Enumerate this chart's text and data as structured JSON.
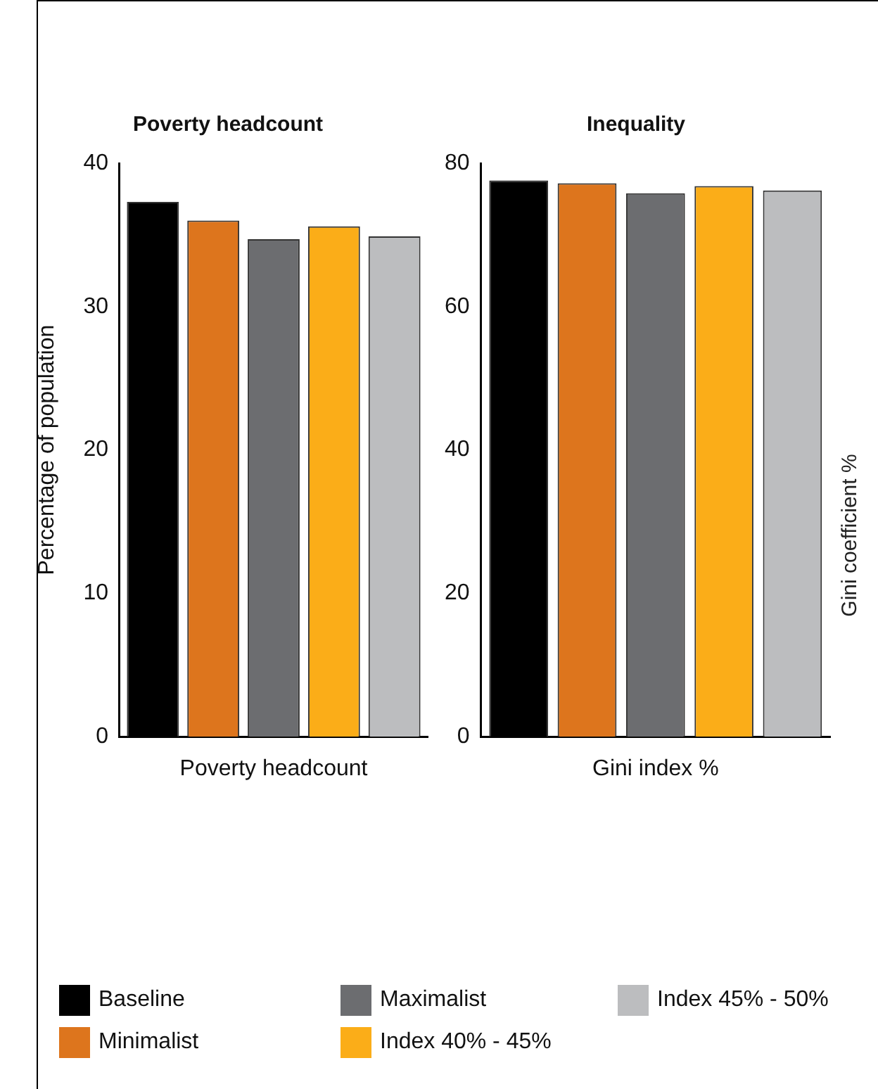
{
  "chart_data": [
    {
      "type": "bar",
      "title": "Poverty headcount",
      "xlabel": "Poverty headcount",
      "ylabel": "Percentage of population",
      "categories": [
        null
      ],
      "ylim": [
        0,
        40
      ],
      "yticks": [
        0,
        10,
        20,
        30,
        40
      ],
      "grid": false,
      "legend": "bottom",
      "series": [
        {
          "name": "Baseline",
          "color": "#000000",
          "values": [
            37.3
          ]
        },
        {
          "name": "Minimalist",
          "color": "#dd751d",
          "values": [
            36.0
          ]
        },
        {
          "name": "Maximalist",
          "color": "#6c6d70",
          "values": [
            34.7
          ]
        },
        {
          "name": "Index 40% - 45%",
          "color": "#fbad18",
          "values": [
            35.6
          ]
        },
        {
          "name": "Index 45% - 50%",
          "color": "#bcbdbf",
          "values": [
            34.9
          ]
        }
      ]
    },
    {
      "type": "bar",
      "title": "Inequality",
      "xlabel": "Gini index %",
      "ylabel": "Gini coefficient %",
      "categories": [
        null
      ],
      "ylim": [
        0,
        80
      ],
      "yticks": [
        0,
        20,
        40,
        60,
        80
      ],
      "grid": false,
      "series": [
        {
          "color": "#000000",
          "values": [
            77.6
          ]
        },
        {
          "color": "#dd751d",
          "values": [
            77.2
          ]
        },
        {
          "color": "#6c6d70",
          "values": [
            75.8
          ]
        },
        {
          "color": "#fbad18",
          "values": [
            76.8
          ]
        },
        {
          "color": "#bcbdbf",
          "values": [
            76.2
          ]
        }
      ]
    }
  ]
}
